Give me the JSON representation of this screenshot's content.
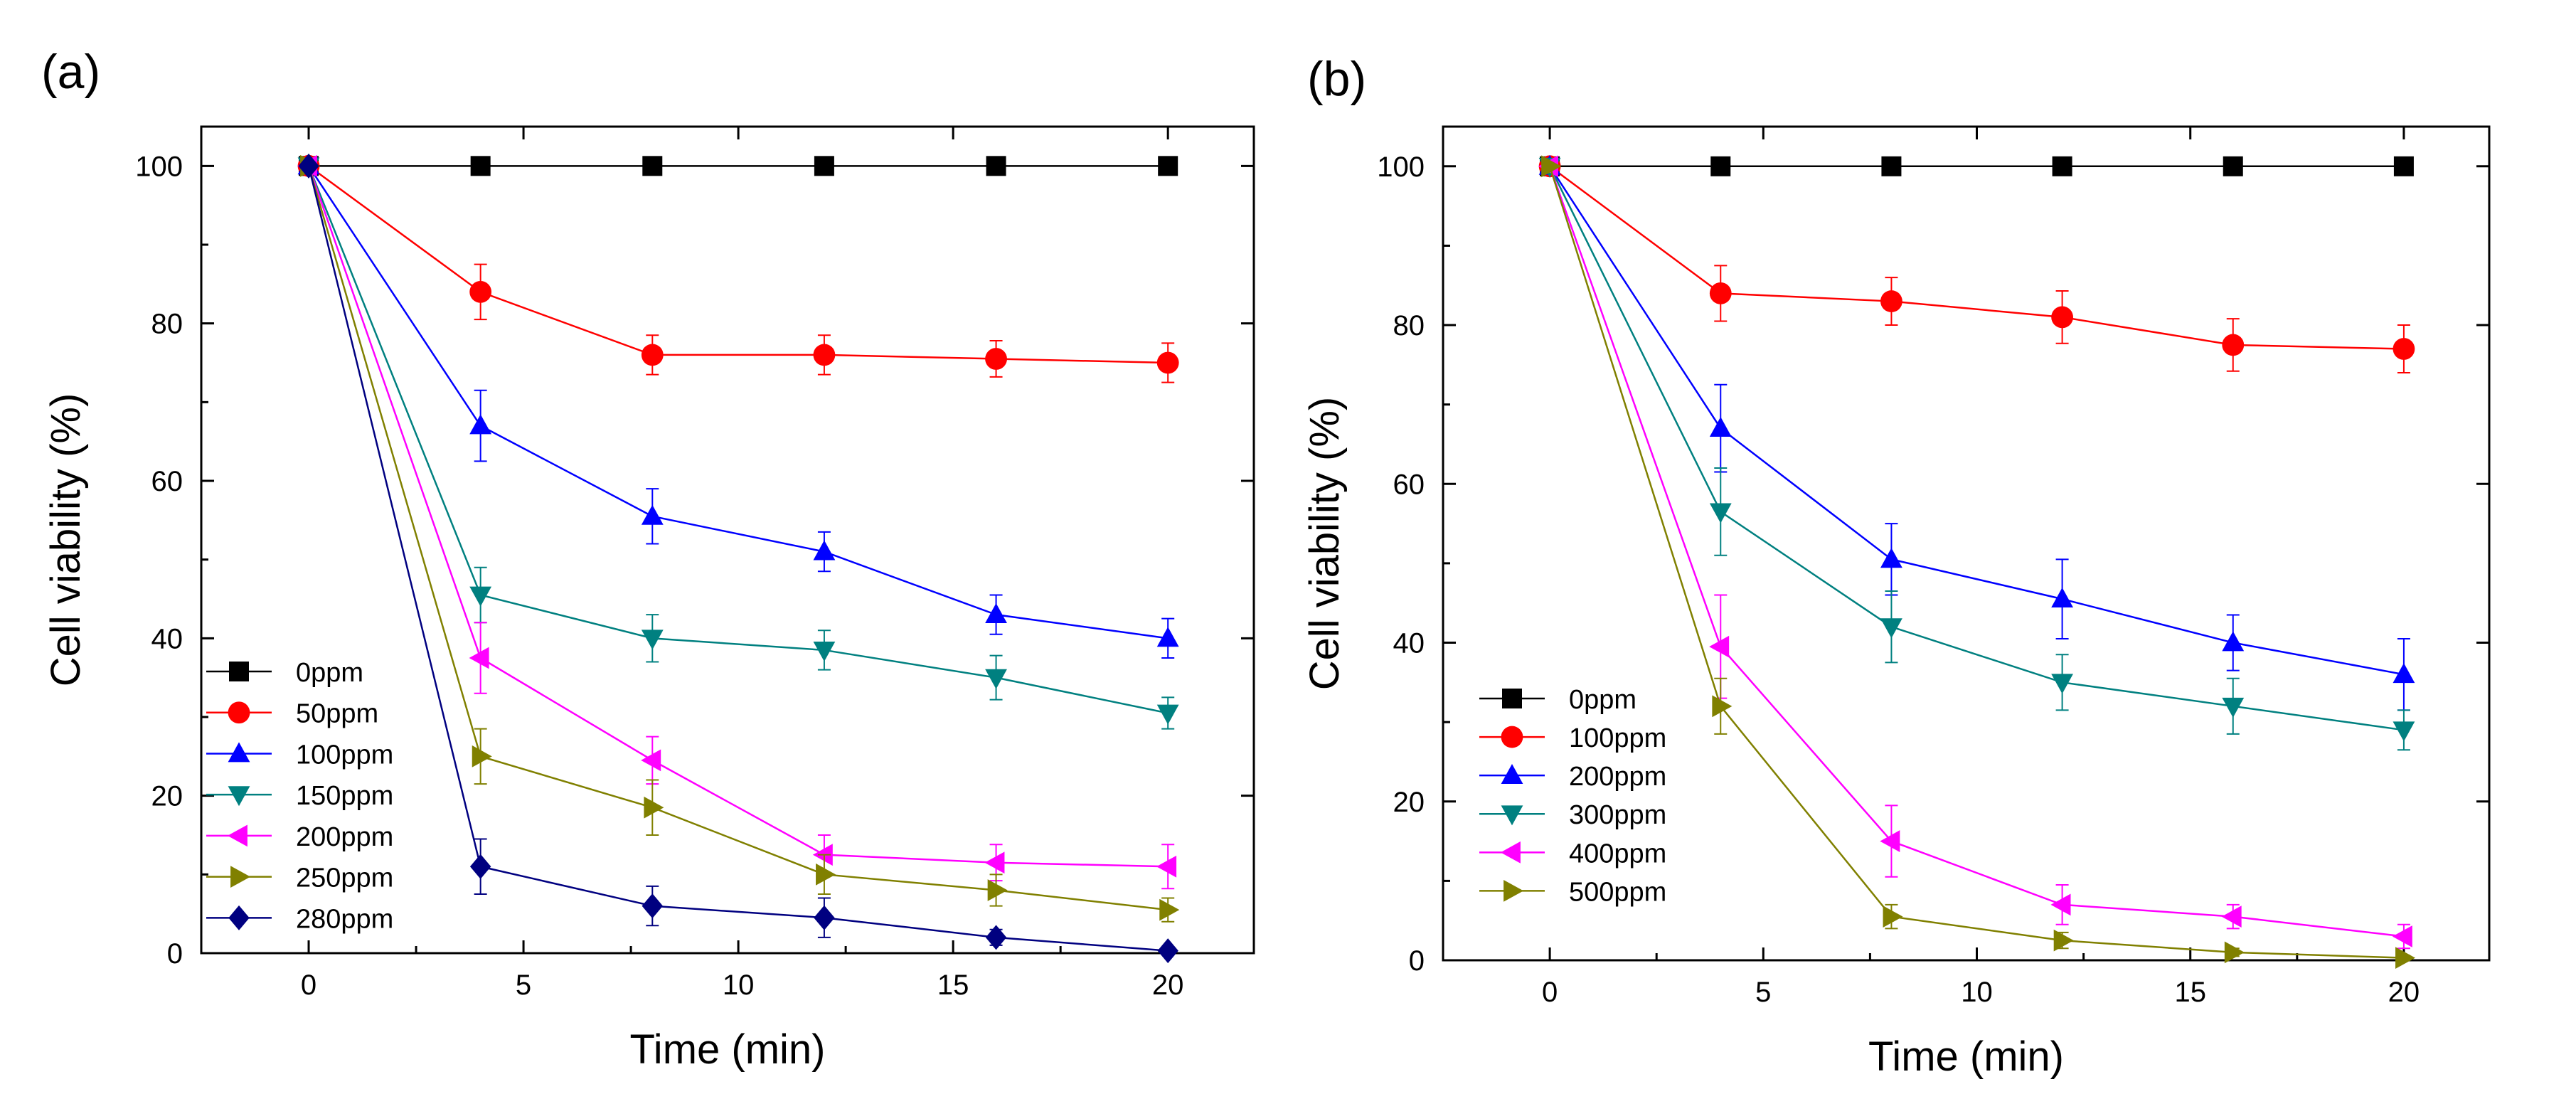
{
  "colors": {
    "0ppm": "#000000",
    "50ppm": "#ff0000",
    "100ppm": "#0000ff",
    "150ppm": "#008080",
    "200ppm": "#ff00ff",
    "250ppm": "#808000",
    "280ppm": "#000080",
    "100ppm_b": "#ff0000",
    "200ppm_b": "#0000ff",
    "300ppm": "#008080",
    "400ppm": "#ff00ff",
    "500ppm": "#808000"
  },
  "chart_data": [
    {
      "panel_label": "(a)",
      "type": "line",
      "xlabel": "Time (min)",
      "ylabel": "Cell  viability (%)",
      "xlim": [
        -2.5,
        22
      ],
      "ylim": [
        0,
        105
      ],
      "xticks": [
        0,
        5,
        10,
        15,
        20
      ],
      "yticks": [
        0,
        20,
        40,
        60,
        80,
        100
      ],
      "legend_position": "center-left",
      "x": [
        0,
        4,
        8,
        12,
        16,
        20
      ],
      "series": [
        {
          "name": "0ppm",
          "marker": "square",
          "values": [
            100,
            100,
            100,
            100,
            100,
            100
          ],
          "errors": [
            0,
            0,
            0,
            0,
            0,
            0
          ]
        },
        {
          "name": "50ppm",
          "marker": "circle",
          "values": [
            100,
            84,
            76,
            76,
            75.5,
            75
          ],
          "errors": [
            0,
            3.5,
            2.5,
            2.5,
            2.3,
            2.5
          ]
        },
        {
          "name": "100ppm",
          "marker": "triangle-up",
          "values": [
            100,
            67,
            55.5,
            51,
            43,
            40
          ],
          "errors": [
            0,
            4.5,
            3.5,
            2.5,
            2.5,
            2.5
          ]
        },
        {
          "name": "150ppm",
          "marker": "triangle-down",
          "values": [
            100,
            45.5,
            40,
            38.5,
            35,
            30.5
          ],
          "errors": [
            0,
            3.5,
            3,
            2.5,
            2.8,
            2
          ]
        },
        {
          "name": "200ppm",
          "marker": "triangle-left",
          "values": [
            100,
            37.5,
            24.5,
            12.5,
            11.5,
            11
          ],
          "errors": [
            0,
            4.5,
            3,
            2.5,
            2.3,
            2.8
          ]
        },
        {
          "name": "250ppm",
          "marker": "triangle-right",
          "values": [
            100,
            25,
            18.5,
            10,
            8,
            5.5
          ],
          "errors": [
            0,
            3.5,
            3.5,
            2.5,
            2,
            1.5
          ]
        },
        {
          "name": "280ppm",
          "marker": "diamond",
          "values": [
            100,
            11,
            6,
            4.5,
            2,
            0.3
          ],
          "errors": [
            0,
            3.5,
            2.5,
            2.5,
            1,
            0.5
          ]
        }
      ]
    },
    {
      "panel_label": "(b)",
      "type": "line",
      "xlabel": "Time (min)",
      "ylabel": "Cell viability (%)",
      "xlim": [
        -2.5,
        22
      ],
      "ylim": [
        0,
        105
      ],
      "xticks": [
        0,
        5,
        10,
        15,
        20
      ],
      "yticks": [
        0,
        20,
        40,
        60,
        80,
        100
      ],
      "legend_position": "bottom-left",
      "x": [
        0,
        4,
        8,
        12,
        16,
        20
      ],
      "series": [
        {
          "name": "0ppm",
          "marker": "square",
          "values": [
            100,
            100,
            100,
            100,
            100,
            100
          ],
          "errors": [
            0,
            0,
            0,
            0,
            0,
            0
          ]
        },
        {
          "name": "100ppm",
          "marker": "circle",
          "values": [
            100,
            84,
            83,
            81,
            77.5,
            77
          ],
          "errors": [
            0,
            3.5,
            3,
            3.3,
            3.3,
            3
          ]
        },
        {
          "name": "200ppm",
          "marker": "triangle-up",
          "values": [
            100,
            67,
            50.5,
            45.5,
            40,
            36
          ],
          "errors": [
            0,
            5.5,
            4.5,
            5,
            3.5,
            4.5
          ]
        },
        {
          "name": "300ppm",
          "marker": "triangle-down",
          "values": [
            100,
            56.5,
            42,
            35,
            32,
            29
          ],
          "errors": [
            0,
            5.5,
            4.5,
            3.5,
            3.5,
            2.5
          ]
        },
        {
          "name": "400ppm",
          "marker": "triangle-left",
          "values": [
            100,
            39.5,
            15,
            7,
            5.5,
            3
          ],
          "errors": [
            0,
            6.5,
            4.5,
            2.5,
            1.5,
            1.5
          ]
        },
        {
          "name": "500ppm",
          "marker": "triangle-right",
          "values": [
            100,
            32,
            5.5,
            2.5,
            1,
            0.3
          ],
          "errors": [
            0,
            3.5,
            1.5,
            1,
            0.5,
            0.3
          ]
        }
      ]
    }
  ]
}
